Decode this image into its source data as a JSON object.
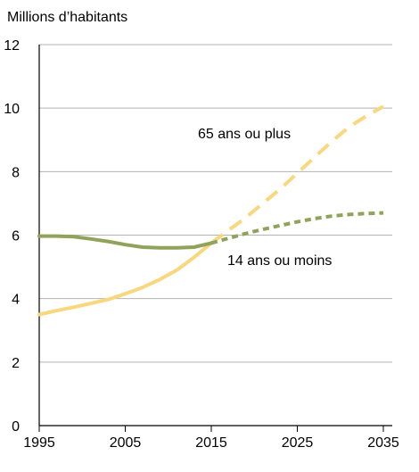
{
  "chart_data": {
    "type": "line",
    "title": "",
    "ylabel": "Millions d’habitants",
    "xlabel": "",
    "xlim": [
      1995,
      2035
    ],
    "ylim": [
      0,
      12
    ],
    "xticks": [
      1995,
      2005,
      2015,
      2025,
      2035
    ],
    "yticks": [
      0,
      2,
      4,
      6,
      8,
      10,
      12
    ],
    "grid": "horizontal",
    "legend": "none",
    "projection_from": 2015,
    "series": [
      {
        "name": "65 ans ou plus",
        "color": "#F9D77E",
        "x": [
          1995,
          1997,
          1999,
          2001,
          2003,
          2005,
          2007,
          2009,
          2011,
          2013,
          2015,
          2017,
          2019,
          2021,
          2023,
          2025,
          2027,
          2029,
          2031,
          2033,
          2035
        ],
        "values": [
          3.5,
          3.62,
          3.73,
          3.85,
          3.97,
          4.15,
          4.35,
          4.6,
          4.9,
          5.3,
          5.75,
          6.15,
          6.55,
          7.0,
          7.45,
          7.95,
          8.45,
          8.95,
          9.4,
          9.75,
          10.05
        ]
      },
      {
        "name": "14 ans ou moins",
        "color": "#8FA45A",
        "x": [
          1995,
          1997,
          1999,
          2001,
          2003,
          2005,
          2007,
          2009,
          2011,
          2013,
          2015,
          2017,
          2019,
          2021,
          2023,
          2025,
          2027,
          2029,
          2031,
          2033,
          2035
        ],
        "values": [
          5.97,
          5.97,
          5.95,
          5.88,
          5.8,
          5.7,
          5.62,
          5.6,
          5.6,
          5.62,
          5.75,
          5.9,
          6.05,
          6.18,
          6.3,
          6.42,
          6.52,
          6.6,
          6.65,
          6.68,
          6.7
        ]
      }
    ],
    "annotations": [
      {
        "text": "65 ans ou plus",
        "series": "65 ans ou plus"
      },
      {
        "text": "14 ans ou moins",
        "series": "14 ans ou moins"
      }
    ]
  }
}
